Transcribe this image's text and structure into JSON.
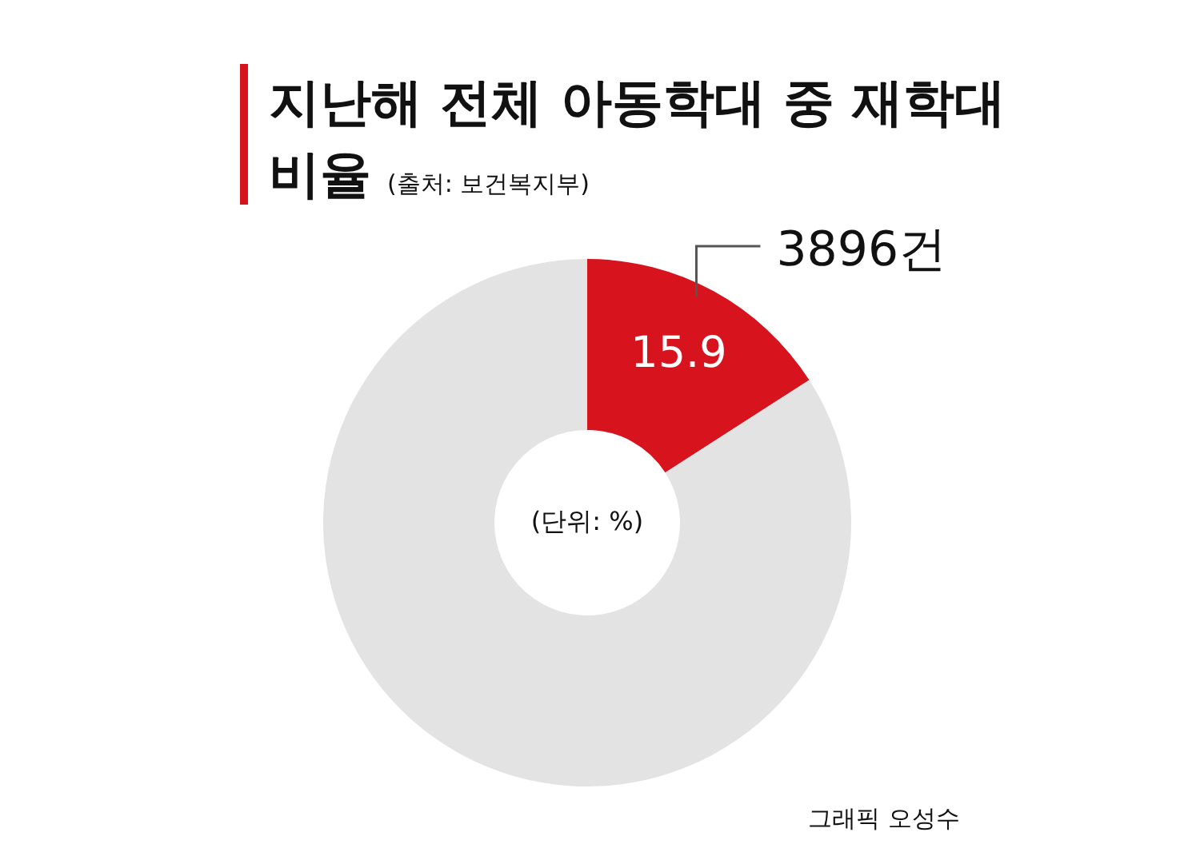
{
  "chart_data": {
    "type": "donut",
    "title": "지난해 전체 아동학대 중 재학대 비율",
    "subtitle": "(출처: 보건복지부)",
    "categories": [
      null,
      null
    ],
    "values": [
      15.9,
      84.1
    ],
    "colors": [
      "#d7141d",
      "#e3e3e3"
    ],
    "value_labels": [
      "15.9",
      null
    ],
    "annotations": [
      "3896건",
      "(단위: %)",
      "그래픽 오성수"
    ]
  }
}
